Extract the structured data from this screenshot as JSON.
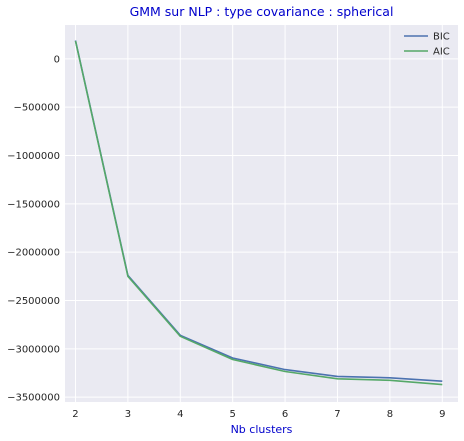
{
  "chart_data": {
    "type": "line",
    "title": "GMM sur NLP : type covariance : spherical",
    "xlabel": "Nb clusters",
    "ylabel": "",
    "x": [
      2,
      3,
      4,
      5,
      6,
      7,
      8,
      9
    ],
    "series": [
      {
        "name": "BIC",
        "color": "#4c72b0",
        "values": [
          190000,
          -2240000,
          -2860000,
          -3095000,
          -3215000,
          -3285000,
          -3300000,
          -3335000
        ]
      },
      {
        "name": "AIC",
        "color": "#55a868",
        "values": [
          185000,
          -2250000,
          -2870000,
          -3110000,
          -3235000,
          -3310000,
          -3325000,
          -3370000
        ]
      }
    ],
    "xlim": [
      1.8,
      9.3
    ],
    "ylim": [
      -3550000,
      350000
    ],
    "xticks": [
      2,
      3,
      4,
      5,
      6,
      7,
      8,
      9
    ],
    "yticks": [
      0,
      -500000,
      -1000000,
      -1500000,
      -2000000,
      -2500000,
      -3000000,
      -3500000
    ],
    "ytick_labels": [
      "0",
      "−500000",
      "−1000000",
      "−1500000",
      "−2000000",
      "−2500000",
      "−3000000",
      "−3500000"
    ],
    "grid": true,
    "legend_position": "top-right",
    "colors": {
      "title": "#0000cc",
      "xlabel": "#0000cc",
      "plot_bg": "#eaeaf2",
      "grid": "#ffffff"
    }
  }
}
